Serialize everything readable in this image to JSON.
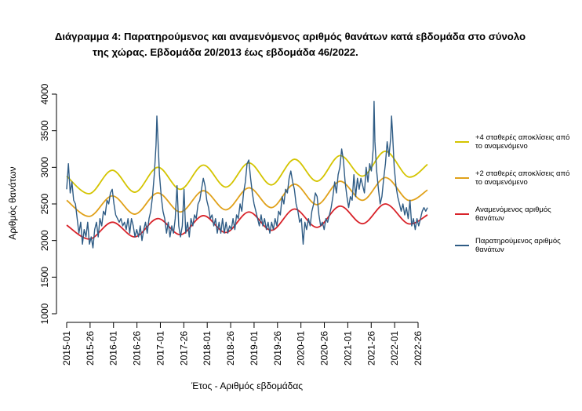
{
  "title_line1": "Διάγραμμα 4: Παρατηρούμενος και αναμενόμενος αριθμός θανάτων κατά εβδομάδα στο σύνολο",
  "title_line2": "της χώρας. Εβδομάδα 20/2013 έως εβδομάδα 46/2022.",
  "chart_data": {
    "type": "line",
    "title": "Διάγραμμα 4: Παρατηρούμενος και αναμενόμενος αριθμός θανάτων κατά εβδομάδα στο σύνολο της χώρας. Εβδομάδα 20/2013 έως εβδομάδα 46/2022.",
    "xlabel": "Έτος - Αριθμός εβδομάδας",
    "ylabel": "Αριθμός θανάτων",
    "ylim": [
      1000,
      4000
    ],
    "yticks": [
      "1000",
      "1500",
      "2000",
      "2500",
      "3000",
      "3500",
      "4000"
    ],
    "xticks": [
      "2015-01",
      "2015-26",
      "2016-01",
      "2016-26",
      "2017-01",
      "2017-26",
      "2018-01",
      "2018-26",
      "2019-01",
      "2019-26",
      "2020-01",
      "2020-26",
      "2021-01",
      "2021-26",
      "2022-01",
      "2022-26"
    ],
    "xlim_weeks": [
      0,
      412
    ],
    "legend_position": "right",
    "series": [
      {
        "name": "+4 σταθερές αποκλίσεις από το αναμενόμενο",
        "color": "#d4c400",
        "points": [
          [
            0,
            2880
          ],
          [
            26,
            2640
          ],
          [
            52,
            2960
          ],
          [
            78,
            2660
          ],
          [
            104,
            3000
          ],
          [
            130,
            2700
          ],
          [
            156,
            3030
          ],
          [
            182,
            2730
          ],
          [
            208,
            3060
          ],
          [
            234,
            2760
          ],
          [
            260,
            3110
          ],
          [
            286,
            2810
          ],
          [
            312,
            3160
          ],
          [
            338,
            2880
          ],
          [
            364,
            3220
          ],
          [
            390,
            2870
          ],
          [
            412,
            3040
          ]
        ]
      },
      {
        "name": "+2 σταθερές αποκλίσεις από το αναμενόμενο",
        "color": "#e0a11a",
        "points": [
          [
            0,
            2550
          ],
          [
            26,
            2330
          ],
          [
            52,
            2610
          ],
          [
            78,
            2360
          ],
          [
            104,
            2650
          ],
          [
            130,
            2390
          ],
          [
            156,
            2680
          ],
          [
            182,
            2420
          ],
          [
            208,
            2720
          ],
          [
            234,
            2450
          ],
          [
            260,
            2770
          ],
          [
            286,
            2490
          ],
          [
            312,
            2810
          ],
          [
            338,
            2550
          ],
          [
            364,
            2860
          ],
          [
            390,
            2550
          ],
          [
            412,
            2690
          ]
        ]
      },
      {
        "name": "Αναμενόμενος αριθμός θανάτων",
        "color": "#d8232a",
        "points": [
          [
            0,
            2210
          ],
          [
            26,
            2020
          ],
          [
            52,
            2250
          ],
          [
            78,
            2050
          ],
          [
            104,
            2300
          ],
          [
            130,
            2080
          ],
          [
            156,
            2340
          ],
          [
            182,
            2110
          ],
          [
            208,
            2390
          ],
          [
            234,
            2140
          ],
          [
            260,
            2430
          ],
          [
            286,
            2180
          ],
          [
            312,
            2470
          ],
          [
            338,
            2230
          ],
          [
            364,
            2500
          ],
          [
            390,
            2230
          ],
          [
            412,
            2350
          ]
        ]
      },
      {
        "name": "Παρατηρούμενος αριθμός θανάτων",
        "color": "#2f5c85",
        "points": [
          [
            0,
            2700
          ],
          [
            2,
            3050
          ],
          [
            4,
            2650
          ],
          [
            6,
            2800
          ],
          [
            8,
            2550
          ],
          [
            10,
            2500
          ],
          [
            12,
            2300
          ],
          [
            14,
            2100
          ],
          [
            16,
            2250
          ],
          [
            18,
            1950
          ],
          [
            20,
            2150
          ],
          [
            22,
            2050
          ],
          [
            24,
            2250
          ],
          [
            26,
            1950
          ],
          [
            28,
            2050
          ],
          [
            30,
            1900
          ],
          [
            32,
            2150
          ],
          [
            34,
            2250
          ],
          [
            36,
            2050
          ],
          [
            38,
            2300
          ],
          [
            40,
            2200
          ],
          [
            42,
            2400
          ],
          [
            44,
            2350
          ],
          [
            46,
            2550
          ],
          [
            48,
            2500
          ],
          [
            50,
            2650
          ],
          [
            52,
            2700
          ],
          [
            54,
            2500
          ],
          [
            56,
            2350
          ],
          [
            58,
            2300
          ],
          [
            60,
            2250
          ],
          [
            62,
            2300
          ],
          [
            64,
            2200
          ],
          [
            66,
            2250
          ],
          [
            68,
            2150
          ],
          [
            70,
            2300
          ],
          [
            72,
            2100
          ],
          [
            74,
            2300
          ],
          [
            76,
            2200
          ],
          [
            78,
            2050
          ],
          [
            80,
            2150
          ],
          [
            82,
            2050
          ],
          [
            84,
            2200
          ],
          [
            86,
            2000
          ],
          [
            88,
            2150
          ],
          [
            90,
            2250
          ],
          [
            92,
            2100
          ],
          [
            94,
            2300
          ],
          [
            96,
            2400
          ],
          [
            98,
            2600
          ],
          [
            100,
            2900
          ],
          [
            102,
            3300
          ],
          [
            103,
            3700
          ],
          [
            104,
            3450
          ],
          [
            106,
            2900
          ],
          [
            108,
            2600
          ],
          [
            110,
            2400
          ],
          [
            112,
            2300
          ],
          [
            114,
            2100
          ],
          [
            116,
            2250
          ],
          [
            118,
            2050
          ],
          [
            120,
            2200
          ],
          [
            122,
            2100
          ],
          [
            124,
            2300
          ],
          [
            126,
            2750
          ],
          [
            128,
            2200
          ],
          [
            130,
            2050
          ],
          [
            132,
            2200
          ],
          [
            134,
            2700
          ],
          [
            136,
            2100
          ],
          [
            138,
            2250
          ],
          [
            140,
            2050
          ],
          [
            142,
            2300
          ],
          [
            144,
            2200
          ],
          [
            146,
            2350
          ],
          [
            148,
            2300
          ],
          [
            150,
            2500
          ],
          [
            152,
            2550
          ],
          [
            154,
            2700
          ],
          [
            156,
            2850
          ],
          [
            158,
            2750
          ],
          [
            160,
            2550
          ],
          [
            162,
            2450
          ],
          [
            164,
            2300
          ],
          [
            166,
            2350
          ],
          [
            168,
            2200
          ],
          [
            170,
            2300
          ],
          [
            172,
            2100
          ],
          [
            174,
            2250
          ],
          [
            176,
            2100
          ],
          [
            178,
            2300
          ],
          [
            180,
            2100
          ],
          [
            182,
            2250
          ],
          [
            184,
            2100
          ],
          [
            186,
            2200
          ],
          [
            188,
            2150
          ],
          [
            190,
            2300
          ],
          [
            192,
            2150
          ],
          [
            194,
            2350
          ],
          [
            196,
            2300
          ],
          [
            198,
            2500
          ],
          [
            200,
            2400
          ],
          [
            202,
            2650
          ],
          [
            204,
            2800
          ],
          [
            206,
            3050
          ],
          [
            208,
            3100
          ],
          [
            210,
            2850
          ],
          [
            212,
            2650
          ],
          [
            214,
            2500
          ],
          [
            216,
            2400
          ],
          [
            218,
            2300
          ],
          [
            220,
            2200
          ],
          [
            222,
            2350
          ],
          [
            224,
            2200
          ],
          [
            226,
            2300
          ],
          [
            228,
            2150
          ],
          [
            230,
            2250
          ],
          [
            232,
            2100
          ],
          [
            234,
            2250
          ],
          [
            236,
            2150
          ],
          [
            238,
            2300
          ],
          [
            240,
            2200
          ],
          [
            242,
            2400
          ],
          [
            244,
            2350
          ],
          [
            246,
            2600
          ],
          [
            248,
            2500
          ],
          [
            250,
            2700
          ],
          [
            252,
            2650
          ],
          [
            254,
            2850
          ],
          [
            256,
            2950
          ],
          [
            258,
            2800
          ],
          [
            260,
            2700
          ],
          [
            262,
            2500
          ],
          [
            264,
            2400
          ],
          [
            266,
            2250
          ],
          [
            268,
            2300
          ],
          [
            270,
            1950
          ],
          [
            272,
            2250
          ],
          [
            274,
            2150
          ],
          [
            276,
            2300
          ],
          [
            278,
            2200
          ],
          [
            280,
            2400
          ],
          [
            282,
            2500
          ],
          [
            284,
            2650
          ],
          [
            286,
            2600
          ],
          [
            288,
            2350
          ],
          [
            290,
            2200
          ],
          [
            292,
            2250
          ],
          [
            294,
            2150
          ],
          [
            296,
            2300
          ],
          [
            298,
            2250
          ],
          [
            300,
            2350
          ],
          [
            302,
            2450
          ],
          [
            304,
            2600
          ],
          [
            306,
            2800
          ],
          [
            308,
            2650
          ],
          [
            310,
            2900
          ],
          [
            312,
            3000
          ],
          [
            314,
            3250
          ],
          [
            316,
            3100
          ],
          [
            318,
            2800
          ],
          [
            320,
            2600
          ],
          [
            322,
            2450
          ],
          [
            324,
            2600
          ],
          [
            326,
            2550
          ],
          [
            328,
            2900
          ],
          [
            330,
            2600
          ],
          [
            332,
            2850
          ],
          [
            334,
            2700
          ],
          [
            336,
            2850
          ],
          [
            338,
            2750
          ],
          [
            340,
            2650
          ],
          [
            342,
            3000
          ],
          [
            344,
            2800
          ],
          [
            346,
            3050
          ],
          [
            348,
            2950
          ],
          [
            350,
            3250
          ],
          [
            351,
            3900
          ],
          [
            352,
            3350
          ],
          [
            354,
            2950
          ],
          [
            356,
            2700
          ],
          [
            358,
            2500
          ],
          [
            360,
            2600
          ],
          [
            362,
            2850
          ],
          [
            364,
            3050
          ],
          [
            366,
            3350
          ],
          [
            368,
            3150
          ],
          [
            370,
            3400
          ],
          [
            371,
            3700
          ],
          [
            372,
            3500
          ],
          [
            374,
            3000
          ],
          [
            376,
            2750
          ],
          [
            378,
            2600
          ],
          [
            380,
            2500
          ],
          [
            382,
            2400
          ],
          [
            384,
            2500
          ],
          [
            386,
            2350
          ],
          [
            388,
            2450
          ],
          [
            390,
            2300
          ],
          [
            392,
            2550
          ],
          [
            394,
            2200
          ],
          [
            396,
            2300
          ],
          [
            398,
            2150
          ],
          [
            400,
            2300
          ],
          [
            402,
            2200
          ],
          [
            404,
            2300
          ],
          [
            406,
            2400
          ],
          [
            408,
            2450
          ],
          [
            410,
            2400
          ],
          [
            412,
            2450
          ]
        ]
      }
    ]
  },
  "legend": [
    {
      "label": "+4 σταθερές αποκλίσεις από το αναμενόμενο",
      "color": "#d4c400"
    },
    {
      "label": "+2 σταθερές αποκλίσεις από το αναμενόμενο",
      "color": "#e0a11a"
    },
    {
      "label": "Αναμενόμενος αριθμός θανάτων",
      "color": "#d8232a"
    },
    {
      "label": "Παρατηρούμενος αριθμός θανάτων",
      "color": "#2f5c85"
    }
  ]
}
